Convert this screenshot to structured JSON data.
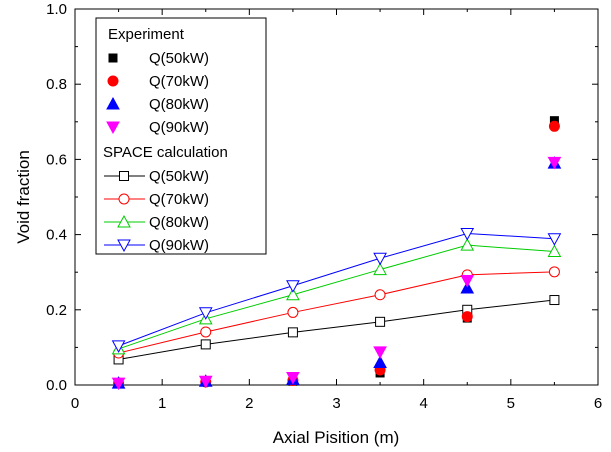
{
  "chart_data": {
    "type": "scatter",
    "xlabel": "Axial Pisition (m)",
    "ylabel": "Void fraction",
    "xlim": [
      0,
      6
    ],
    "ylim": [
      0.0,
      1.0
    ],
    "xticks": [
      "0",
      "1",
      "2",
      "3",
      "4",
      "5",
      "6"
    ],
    "yticks": [
      "0.0",
      "0.2",
      "0.4",
      "0.6",
      "0.8",
      "1.0"
    ],
    "legend_placement": "top-left",
    "legend": {
      "experiment_title": "Experiment",
      "calculation_title": "SPACE calculation"
    },
    "experiment": [
      {
        "name": "Q(50kW)",
        "color": "#000000",
        "marker": "square-filled",
        "x": [
          0.5,
          1.5,
          2.5,
          3.5,
          4.5,
          5.5
        ],
        "y": [
          0.005,
          0.008,
          0.01,
          0.032,
          0.178,
          0.703
        ]
      },
      {
        "name": "Q(70kW)",
        "color": "#ff0000",
        "marker": "circle-filled",
        "x": [
          0.5,
          1.5,
          2.5,
          3.5,
          4.5,
          5.5
        ],
        "y": [
          0.005,
          0.008,
          0.012,
          0.04,
          0.182,
          0.688
        ]
      },
      {
        "name": "Q(80kW)",
        "color": "#0000ff",
        "marker": "triangle-up-filled",
        "x": [
          0.5,
          1.5,
          2.5,
          3.5,
          4.5,
          5.5
        ],
        "y": [
          0.005,
          0.01,
          0.015,
          0.06,
          0.258,
          0.59
        ]
      },
      {
        "name": "Q(90kW)",
        "color": "#ff00ff",
        "marker": "triangle-down-filled",
        "x": [
          0.5,
          1.5,
          2.5,
          3.5,
          4.5,
          5.5
        ],
        "y": [
          0.005,
          0.01,
          0.02,
          0.088,
          0.278,
          0.592
        ]
      }
    ],
    "calculation": [
      {
        "name": "Q(50kW)",
        "color": "#000000",
        "marker": "square-open",
        "x": [
          0.5,
          1.5,
          2.5,
          3.5,
          4.5,
          5.5
        ],
        "y": [
          0.068,
          0.108,
          0.14,
          0.168,
          0.2,
          0.226
        ]
      },
      {
        "name": "Q(70kW)",
        "color": "#ff0000",
        "marker": "circle-open",
        "x": [
          0.5,
          1.5,
          2.5,
          3.5,
          4.5,
          5.5
        ],
        "y": [
          0.085,
          0.141,
          0.193,
          0.24,
          0.293,
          0.301
        ]
      },
      {
        "name": "Q(80kW)",
        "color": "#00cc00",
        "marker": "triangle-up-open",
        "x": [
          0.5,
          1.5,
          2.5,
          3.5,
          4.5,
          5.5
        ],
        "y": [
          0.096,
          0.176,
          0.24,
          0.307,
          0.372,
          0.355
        ]
      },
      {
        "name": "Q(90kW)",
        "color": "#0000ff",
        "marker": "triangle-down-open",
        "x": [
          0.5,
          1.5,
          2.5,
          3.5,
          4.5,
          5.5
        ],
        "y": [
          0.104,
          0.192,
          0.264,
          0.337,
          0.403,
          0.389
        ]
      }
    ]
  }
}
